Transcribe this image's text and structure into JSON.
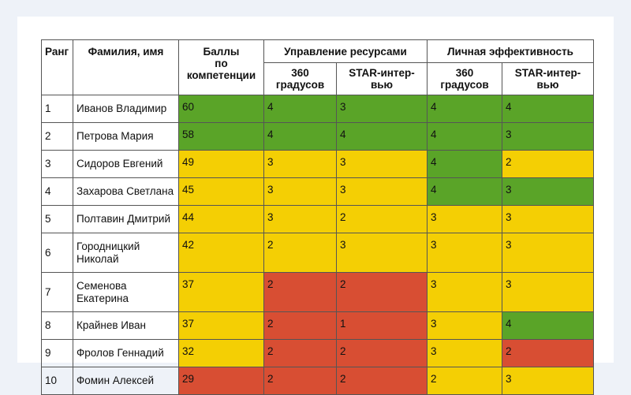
{
  "headers": {
    "rank": "Ранг",
    "name": "Фамилия, имя",
    "score": "Баллы по компетенции",
    "group1": "Управление ресурсами",
    "group2": "Личная эффективность",
    "sub_360": "360 градусов",
    "sub_star": "STAR-интер-вью"
  },
  "colors": {
    "green": "#5aa428",
    "yellow": "#f4cf04",
    "red": "#d84e33"
  },
  "rows": [
    {
      "rank": "1",
      "name": "Иванов Владимир",
      "score": "60",
      "score_c": "green",
      "ur360": "4",
      "ur360_c": "green",
      "urstar": "3",
      "urstar_c": "green",
      "le360": "4",
      "le360_c": "green",
      "lestar": "4",
      "lestar_c": "green"
    },
    {
      "rank": "2",
      "name": "Петрова Мария",
      "score": "58",
      "score_c": "green",
      "ur360": "4",
      "ur360_c": "green",
      "urstar": "4",
      "urstar_c": "green",
      "le360": "4",
      "le360_c": "green",
      "lestar": "3",
      "lestar_c": "green"
    },
    {
      "rank": "3",
      "name": "Сидоров Евгений",
      "score": "49",
      "score_c": "yellow",
      "ur360": "3",
      "ur360_c": "yellow",
      "urstar": "3",
      "urstar_c": "yellow",
      "le360": "4",
      "le360_c": "green",
      "lestar": "2",
      "lestar_c": "yellow"
    },
    {
      "rank": "4",
      "name": "Захарова Светлана",
      "score": "45",
      "score_c": "yellow",
      "ur360": "3",
      "ur360_c": "yellow",
      "urstar": "3",
      "urstar_c": "yellow",
      "le360": "4",
      "le360_c": "green",
      "lestar": "3",
      "lestar_c": "green"
    },
    {
      "rank": "5",
      "name": "Полтавин Дмитрий",
      "score": "44",
      "score_c": "yellow",
      "ur360": "3",
      "ur360_c": "yellow",
      "urstar": "2",
      "urstar_c": "yellow",
      "le360": "3",
      "le360_c": "yellow",
      "lestar": "3",
      "lestar_c": "yellow"
    },
    {
      "rank": "6",
      "name": "Городницкий Николай",
      "score": "42",
      "score_c": "yellow",
      "ur360": "2",
      "ur360_c": "yellow",
      "urstar": "3",
      "urstar_c": "yellow",
      "le360": "3",
      "le360_c": "yellow",
      "lestar": "3",
      "lestar_c": "yellow"
    },
    {
      "rank": "7",
      "name": "Семенова Екатерина",
      "score": "37",
      "score_c": "yellow",
      "ur360": "2",
      "ur360_c": "red",
      "urstar": "2",
      "urstar_c": "red",
      "le360": "3",
      "le360_c": "yellow",
      "lestar": "3",
      "lestar_c": "yellow"
    },
    {
      "rank": "8",
      "name": "Крайнев Иван",
      "score": "37",
      "score_c": "yellow",
      "ur360": "2",
      "ur360_c": "red",
      "urstar": "1",
      "urstar_c": "red",
      "le360": "3",
      "le360_c": "yellow",
      "lestar": "4",
      "lestar_c": "green"
    },
    {
      "rank": "9",
      "name": "Фролов Геннадий",
      "score": "32",
      "score_c": "yellow",
      "ur360": "2",
      "ur360_c": "red",
      "urstar": "2",
      "urstar_c": "red",
      "le360": "3",
      "le360_c": "yellow",
      "lestar": "2",
      "lestar_c": "red"
    },
    {
      "rank": "10",
      "name": "Фомин Алексей",
      "score": "29",
      "score_c": "red",
      "ur360": "2",
      "ur360_c": "red",
      "urstar": "2",
      "urstar_c": "red",
      "le360": "2",
      "le360_c": "yellow",
      "lestar": "3",
      "lestar_c": "yellow"
    }
  ]
}
